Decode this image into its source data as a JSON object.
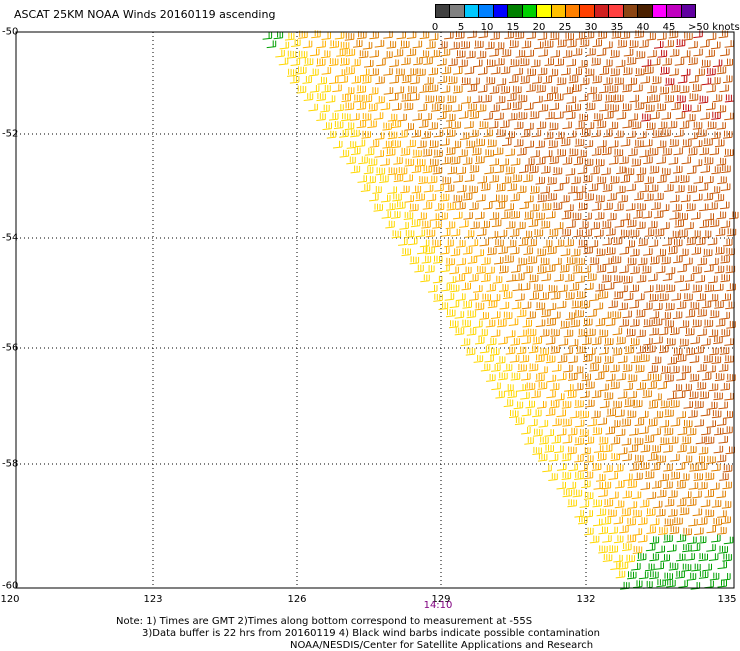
{
  "title": "ASCAT 25KM NOAA Winds 20160119 ascending",
  "legend": {
    "labels": [
      "0",
      "5",
      "10",
      "15",
      "20",
      "25",
      "30",
      "35",
      "40",
      "45"
    ],
    "unit_label": ">50 knots",
    "colors": [
      "#404040",
      "#808080",
      "#00c8ff",
      "#0080ff",
      "#0000ff",
      "#008000",
      "#00d000",
      "#ffff00",
      "#ffc000",
      "#ff8000",
      "#ff4000",
      "#d02020",
      "#ff4040",
      "#8b4513",
      "#4a2000",
      "#ff00ff",
      "#c000c0",
      "#6000a0"
    ]
  },
  "axes": {
    "lat_labels": [
      "-50",
      "-52",
      "-54",
      "-56",
      "-58",
      "-60"
    ],
    "lon_labels": [
      "120",
      "123",
      "126",
      "129",
      "132",
      "135"
    ]
  },
  "pass_time": "14:10",
  "notes": [
    "Note: 1) Times are GMT 2)Times along bottom correspond to measurement at -55S",
    "3)Data buffer is 22 hrs from 20160119 4) Black wind barbs indicate possible contamination",
    "NOAA/NESDIS/Center for Satellite Applications and Research"
  ]
}
